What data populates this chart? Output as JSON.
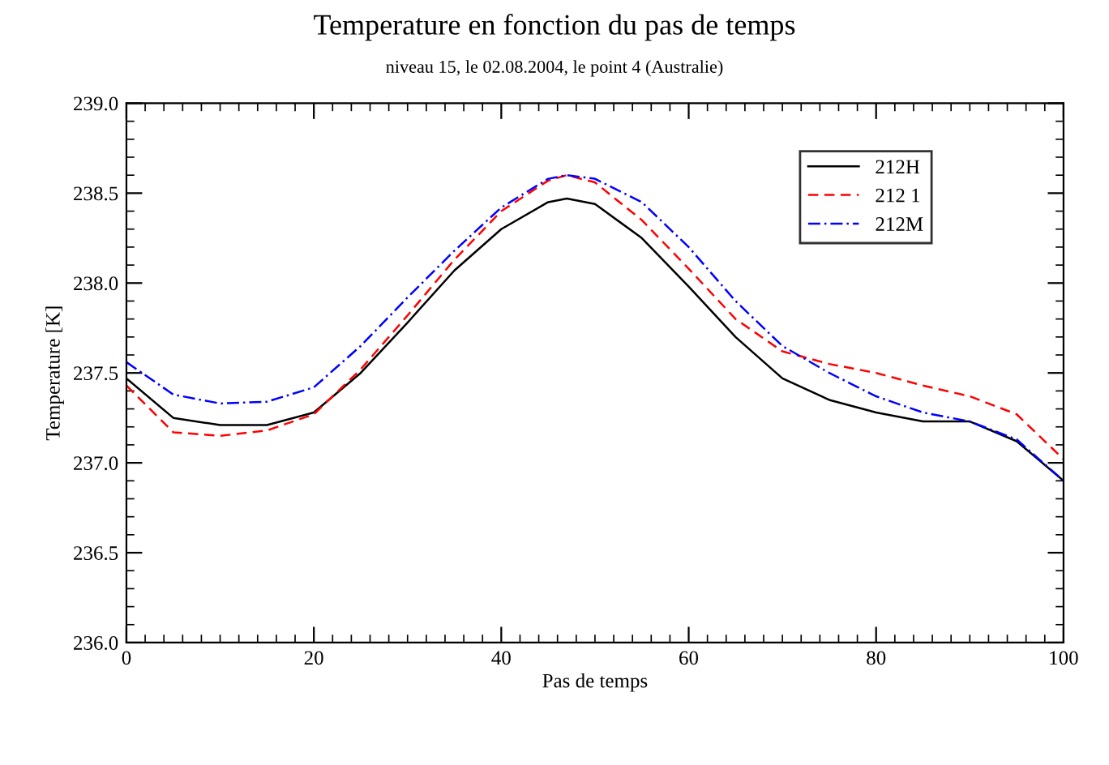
{
  "chart_data": {
    "type": "line",
    "title": "Temperature en fonction du pas de temps",
    "subtitle": "niveau 15, le 02.08.2004, le point 4 (Australie)",
    "xlabel": "Pas de temps",
    "ylabel": "Temperature [K]",
    "x": [
      0,
      5,
      10,
      15,
      20,
      25,
      30,
      35,
      40,
      45,
      47,
      50,
      55,
      60,
      65,
      70,
      75,
      80,
      85,
      90,
      95,
      100
    ],
    "series": [
      {
        "name": "212H",
        "color": "#000000",
        "line_style": "solid",
        "values": [
          237.47,
          237.25,
          237.21,
          237.21,
          237.28,
          237.5,
          237.78,
          238.07,
          238.3,
          238.45,
          238.47,
          238.44,
          238.25,
          237.98,
          237.7,
          237.47,
          237.35,
          237.28,
          237.23,
          237.23,
          237.12,
          236.9
        ]
      },
      {
        "name": "212 1",
        "color": "#ff0000",
        "line_style": "dashed",
        "values": [
          237.43,
          237.17,
          237.15,
          237.18,
          237.27,
          237.52,
          237.82,
          238.13,
          238.4,
          238.57,
          238.6,
          238.56,
          238.35,
          238.08,
          237.8,
          237.62,
          237.55,
          237.5,
          237.43,
          237.37,
          237.27,
          237.02
        ]
      },
      {
        "name": "212M",
        "color": "#0000ff",
        "line_style": "dashdot",
        "values": [
          237.56,
          237.38,
          237.33,
          237.34,
          237.42,
          237.65,
          237.92,
          238.18,
          238.42,
          238.58,
          238.6,
          238.58,
          238.45,
          238.2,
          237.9,
          237.65,
          237.5,
          237.37,
          237.28,
          237.23,
          237.13,
          236.9
        ]
      }
    ],
    "xlim": [
      0,
      100
    ],
    "xticks": [
      0,
      20,
      40,
      60,
      80,
      100
    ],
    "ylim": [
      236.0,
      239.0
    ],
    "yticks": [
      {
        "value": 236.0,
        "label": "236.0"
      },
      {
        "value": 236.5,
        "label": "236.5"
      },
      {
        "value": 237.0,
        "label": "237.0"
      },
      {
        "value": 237.5,
        "label": "237.5"
      },
      {
        "value": 238.0,
        "label": "238.0"
      },
      {
        "value": 238.5,
        "label": "238.5"
      },
      {
        "value": 239.0,
        "label": "239.0"
      }
    ],
    "grid": false,
    "legend": "top right",
    "marker": "none"
  }
}
